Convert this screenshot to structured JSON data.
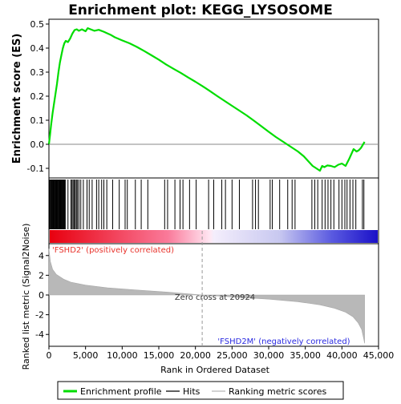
{
  "chart_data": {
    "type": "line",
    "title": "Enrichment plot: KEGG_LYSOSOME",
    "xlabel": "Rank in Ordered Dataset",
    "xlim": [
      0,
      45000
    ],
    "x_ticks": [
      0,
      5000,
      10000,
      15000,
      20000,
      25000,
      30000,
      35000,
      40000,
      45000
    ],
    "x_tick_labels": [
      "0",
      "5,000",
      "10,000",
      "15,000",
      "20,000",
      "25,000",
      "30,000",
      "35,000",
      "40,000",
      "45,000"
    ],
    "n_genes": 43100,
    "es_panel": {
      "ylabel": "Enrichment score (ES)",
      "ylim": [
        -0.14,
        0.52
      ],
      "y_ticks": [
        -0.1,
        0.0,
        0.1,
        0.2,
        0.3,
        0.4,
        0.5
      ],
      "y_tick_labels": [
        "-0.1",
        "0.0",
        "0.1",
        "0.2",
        "0.3",
        "0.4",
        "0.5"
      ],
      "series": [
        {
          "name": "Enrichment profile",
          "color": "#00dd00",
          "x": [
            0,
            150,
            300,
            500,
            700,
            900,
            1100,
            1300,
            1500,
            1700,
            1900,
            2100,
            2300,
            2600,
            2900,
            3200,
            3500,
            3800,
            4100,
            4500,
            5000,
            5300,
            5700,
            6200,
            6800,
            7500,
            8000,
            8500,
            9000,
            10000,
            11000,
            12000,
            13000,
            14000,
            15000,
            16000,
            17000,
            18000,
            19000,
            20000,
            21000,
            22000,
            23000,
            24000,
            25000,
            26000,
            27000,
            28000,
            29000,
            30000,
            31000,
            32000,
            33000,
            34000,
            34800,
            35400,
            36000,
            36500,
            37000,
            37300,
            37600,
            38000,
            38500,
            39000,
            39500,
            40000,
            40500,
            41000,
            41300,
            41600,
            42000,
            42300,
            42600,
            42900,
            43100
          ],
          "y": [
            0.0,
            0.04,
            0.08,
            0.13,
            0.17,
            0.21,
            0.25,
            0.3,
            0.34,
            0.37,
            0.4,
            0.42,
            0.43,
            0.425,
            0.44,
            0.46,
            0.475,
            0.478,
            0.472,
            0.478,
            0.47,
            0.483,
            0.478,
            0.472,
            0.476,
            0.468,
            0.461,
            0.454,
            0.445,
            0.432,
            0.42,
            0.405,
            0.388,
            0.37,
            0.352,
            0.332,
            0.314,
            0.297,
            0.278,
            0.26,
            0.241,
            0.221,
            0.2,
            0.18,
            0.16,
            0.14,
            0.12,
            0.098,
            0.075,
            0.052,
            0.03,
            0.01,
            -0.01,
            -0.03,
            -0.05,
            -0.07,
            -0.09,
            -0.1,
            -0.11,
            -0.09,
            -0.095,
            -0.088,
            -0.09,
            -0.095,
            -0.085,
            -0.08,
            -0.09,
            -0.06,
            -0.04,
            -0.02,
            -0.03,
            -0.025,
            -0.015,
            0.0,
            0.01
          ]
        }
      ]
    },
    "hits_panel": {
      "legend_label": "Hits",
      "hit_ranks": [
        80,
        180,
        280,
        380,
        480,
        560,
        650,
        740,
        830,
        920,
        1000,
        1090,
        1180,
        1270,
        1350,
        1440,
        1530,
        1620,
        1700,
        1790,
        1880,
        1960,
        2050,
        2140,
        2230,
        2600,
        3000,
        3150,
        3300,
        3450,
        3600,
        3750,
        3900,
        4100,
        4350,
        4700,
        5200,
        5500,
        5900,
        6500,
        6800,
        7200,
        7500,
        7900,
        8700,
        9600,
        10400,
        10700,
        11800,
        12600,
        13500,
        15800,
        16200,
        17200,
        17900,
        18300,
        19200,
        20100,
        21800,
        22500,
        23600,
        24100,
        25000,
        26000,
        27800,
        28200,
        28600,
        30200,
        30500,
        31500,
        32600,
        33200,
        33600,
        35900,
        36300,
        36700,
        37300,
        37700,
        38100,
        38500,
        38900,
        39600,
        40000,
        40400,
        40700,
        41100,
        41500,
        41900,
        42800,
        43000
      ]
    },
    "metric_panel": {
      "ylabel": "Ranked list metric (Signal2Noise)",
      "legend_label": "Ranking metric scores",
      "ylim": [
        -5.2,
        5.2
      ],
      "y_ticks": [
        -4,
        -2,
        0,
        2,
        4
      ],
      "y_tick_labels": [
        "-4",
        "-2",
        "0",
        "2",
        "4"
      ],
      "x": [
        0,
        200,
        500,
        1000,
        2000,
        3000,
        5000,
        8000,
        12000,
        16000,
        20924,
        25000,
        30000,
        34000,
        37000,
        39000,
        40500,
        41500,
        42200,
        42700,
        43000,
        43100
      ],
      "y": [
        4.7,
        3.4,
        2.6,
        2.1,
        1.6,
        1.3,
        1.0,
        0.72,
        0.5,
        0.3,
        0.0,
        -0.2,
        -0.42,
        -0.68,
        -1.0,
        -1.35,
        -1.75,
        -2.2,
        -2.8,
        -3.5,
        -4.5,
        -4.9
      ],
      "zero_cross_label": "Zero cross at 20924",
      "zero_cross_rank": 20924,
      "positive_label": "'FSHD2' (positively correlated)",
      "negative_label": "'FSHD2M' (negatively correlated)"
    },
    "colors": {
      "profile": "#00dd00",
      "metric_fill": "#b8b8b8",
      "positive_text": "#e8322b",
      "negative_text": "#2a2ae0",
      "bar_start": "#e8000f",
      "bar_mid": "#ffffff",
      "bar_end": "#1a10c8"
    }
  },
  "legend": {
    "items": [
      {
        "label": "Enrichment profile",
        "color": "#00dd00"
      },
      {
        "label": "Hits",
        "color": "#000000"
      },
      {
        "label": "Ranking metric scores",
        "color": "#b8b8b8"
      }
    ]
  }
}
